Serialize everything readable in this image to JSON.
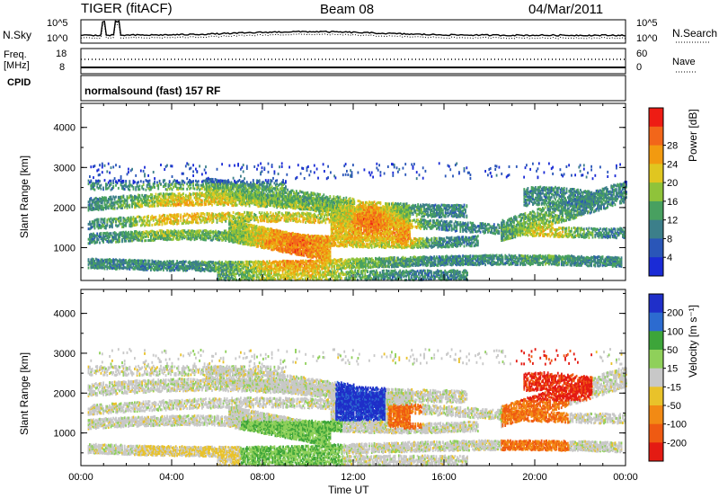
{
  "header": {
    "station": "TIGER (fitACF)",
    "beam": "Beam 08",
    "date": "04/Mar/2011"
  },
  "strip_panels": {
    "nsky_label": "N.Sky",
    "nsearch_label": "N.Search",
    "noise_ticks_left": [
      "10^5",
      "10^0"
    ],
    "noise_ticks_right": [
      "10^5",
      "10^0"
    ],
    "freq_label": "Freq.\n[MHz]",
    "freq_ticks": [
      "18",
      "8"
    ],
    "nave_label": "Nave",
    "nave_ticks": [
      "60",
      "0"
    ],
    "cpid_label": "CPID",
    "cpid_value": "normalsound (fast) 157 RF"
  },
  "colors": {
    "power": [
      "#1a2bd6",
      "#2a56b8",
      "#3c7f8a",
      "#48a060",
      "#8fc33a",
      "#e0c620",
      "#f29a10",
      "#f2661a",
      "#ee1c14"
    ],
    "velocity": [
      "#1f2fc9",
      "#2c6bd0",
      "#3da53a",
      "#8fd05a",
      "#c8c8c8",
      "#e9c22a",
      "#f28a14",
      "#ef5a12",
      "#e41b13"
    ]
  },
  "chart_data": [
    {
      "type": "heatmap",
      "name": "power",
      "ylabel": "Slant Range [km]",
      "yticks": [
        "1000",
        "2000",
        "3000",
        "4000"
      ],
      "ylim": [
        180,
        4600
      ],
      "xlim_hours": [
        0,
        24
      ],
      "colorbar_label": "Power [dB]",
      "colorbar_ticks": [
        "4",
        "8",
        "12",
        "16",
        "20",
        "24",
        "28"
      ],
      "color_range": [
        0,
        32
      ]
    },
    {
      "type": "heatmap",
      "name": "velocity",
      "ylabel": "Slant Range [km]",
      "yticks": [
        "1000",
        "2000",
        "3000",
        "4000"
      ],
      "ylim": [
        180,
        4600
      ],
      "xlim_hours": [
        0,
        24
      ],
      "xlabel": "Time UT",
      "xticks": [
        "00:00",
        "04:00",
        "08:00",
        "12:00",
        "16:00",
        "20:00",
        "00:00"
      ],
      "colorbar_label": "Velocity [m s⁻¹]",
      "colorbar_ticks": [
        "200",
        "100",
        "50",
        "15",
        "-15",
        "-50",
        "-100",
        "-200"
      ]
    }
  ]
}
